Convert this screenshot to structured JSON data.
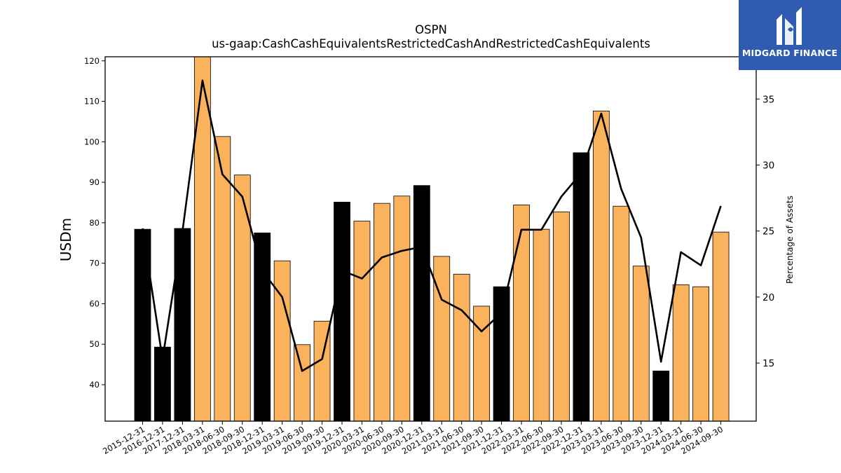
{
  "chart_data": {
    "type": "bar",
    "title": "OSPN",
    "subtitle": "us-gaap:CashCashEquivalentsRestrictedCashAndRestrictedCashEquivalents",
    "ylabel": "USDm",
    "y2label": "Percentage of Assets",
    "ylim": [
      31,
      121
    ],
    "y2lim": [
      10.6,
      38.2
    ],
    "yticks": [
      40,
      50,
      60,
      70,
      80,
      90,
      100,
      110,
      120
    ],
    "y2ticks": [
      15,
      20,
      25,
      30,
      35
    ],
    "grid": false,
    "categories": [
      "2015-12-31",
      "2016-12-31",
      "2017-12-31",
      "2018-03-31",
      "2018-06-30",
      "2018-09-30",
      "2018-12-31",
      "2019-03-31",
      "2019-06-30",
      "2019-09-30",
      "2019-12-31",
      "2020-03-31",
      "2020-06-30",
      "2020-09-30",
      "2020-12-31",
      "2021-03-31",
      "2021-06-30",
      "2021-09-30",
      "2021-12-31",
      "2022-03-31",
      "2022-06-30",
      "2022-09-30",
      "2022-12-31",
      "2023-03-31",
      "2023-06-30",
      "2023-09-30",
      "2023-12-31",
      "2024-03-31",
      "2024-06-30",
      "2024-09-30"
    ],
    "series": [
      {
        "type": "bar",
        "values": [
          78.4,
          49.3,
          78.6,
          121.0,
          101.3,
          91.8,
          77.5,
          70.6,
          49.9,
          55.7,
          85.1,
          80.4,
          84.8,
          86.6,
          89.2,
          71.7,
          67.3,
          59.4,
          64.2,
          84.4,
          78.4,
          82.7,
          97.3,
          107.6,
          84.1,
          69.3,
          43.4,
          64.7,
          64.2,
          77.7
        ],
        "colors": [
          "#000000",
          "#000000",
          "#000000",
          "#fbb25c",
          "#fbb25c",
          "#fbb25c",
          "#000000",
          "#fbb25c",
          "#fbb25c",
          "#fbb25c",
          "#000000",
          "#fbb25c",
          "#fbb25c",
          "#fbb25c",
          "#000000",
          "#fbb25c",
          "#fbb25c",
          "#fbb25c",
          "#000000",
          "#fbb25c",
          "#fbb25c",
          "#fbb25c",
          "#000000",
          "#fbb25c",
          "#fbb25c",
          "#fbb25c",
          "#000000",
          "#fbb25c",
          "#fbb25c",
          "#fbb25c"
        ]
      },
      {
        "type": "line",
        "axis": "right",
        "color": "#000000",
        "values": [
          25.2,
          15.3,
          25.0,
          36.4,
          29.3,
          27.6,
          22.0,
          20.0,
          14.4,
          15.3,
          22.0,
          21.4,
          23.0,
          23.5,
          23.8,
          19.8,
          19.0,
          17.4,
          18.8,
          25.1,
          25.1,
          27.6,
          29.4,
          33.9,
          28.2,
          24.5,
          15.1,
          23.4,
          22.4,
          26.9
        ]
      }
    ]
  },
  "logo": {
    "text": "MIDGARD FINANCE",
    "icon": "midgard-m-logo-icon"
  }
}
